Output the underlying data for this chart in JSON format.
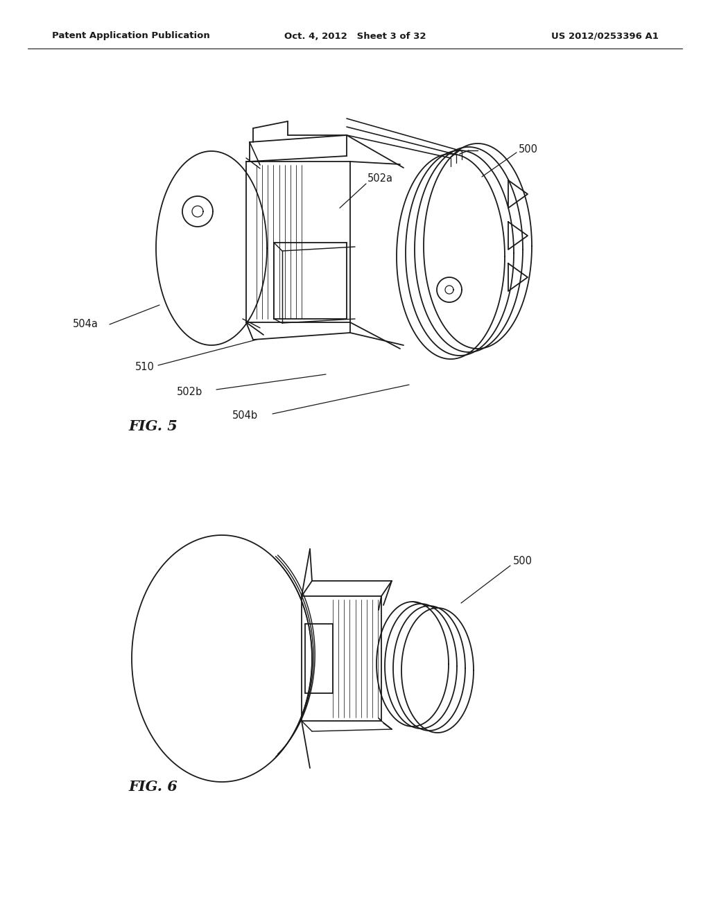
{
  "background_color": "#ffffff",
  "header_left": "Patent Application Publication",
  "header_center": "Oct. 4, 2012   Sheet 3 of 32",
  "header_right": "US 2012/0253396 A1",
  "fig5_label": "FIG. 5",
  "fig6_label": "FIG. 6",
  "line_color": "#1a1a1a",
  "line_width": 1.3,
  "label_fontsize": 10.5,
  "header_fontsize": 9.5,
  "fig_label_fontsize": 15
}
